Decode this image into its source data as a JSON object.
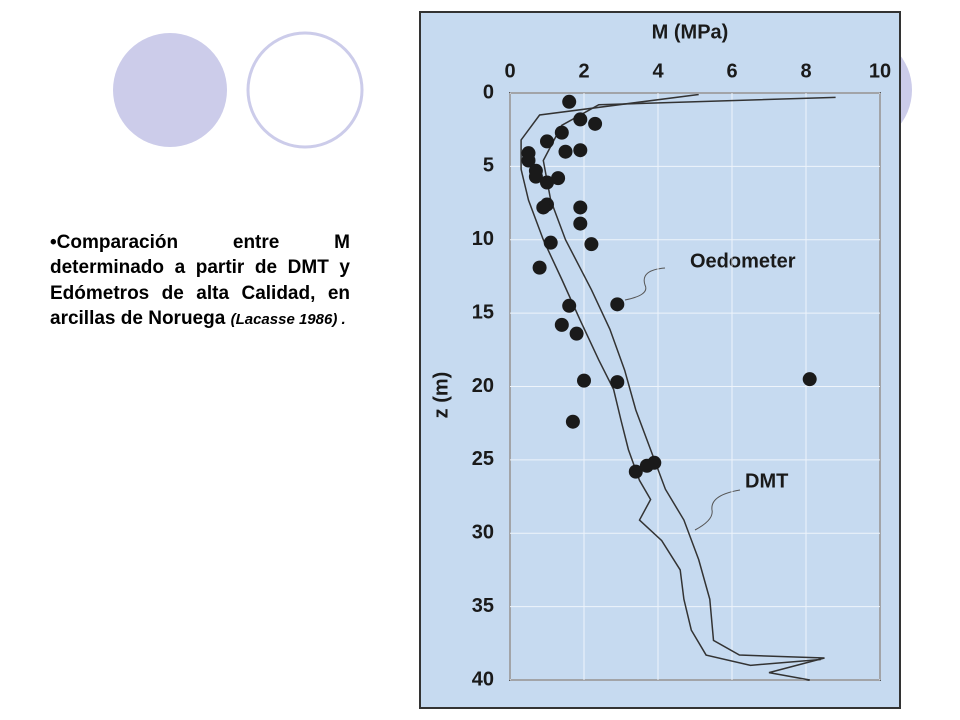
{
  "slide": {
    "text": "•Comparación entre M determinado a partir de DMT y Edómetros de alta Calidad, en arcillas de Noruega",
    "citation": "(Lacasse 1986) ."
  },
  "chart_data": {
    "type": "scatter",
    "title": "M (MPa)",
    "y_label": "z (m)",
    "xlim": [
      0,
      10
    ],
    "xticks": [
      0,
      2,
      4,
      6,
      8,
      10
    ],
    "ylim": [
      0,
      40
    ],
    "yticks": [
      0,
      5,
      10,
      15,
      20,
      25,
      30,
      35,
      40
    ],
    "y_inverted": true,
    "grid": true,
    "color": "#1a1a1a",
    "points": {
      "x": [
        1.6,
        1.9,
        2.3,
        1.4,
        1.0,
        1.9,
        1.5,
        0.5,
        0.5,
        0.7,
        0.7,
        1.3,
        1.0,
        1.0,
        0.9,
        1.9,
        1.9,
        1.1,
        2.2,
        0.8,
        1.6,
        2.9,
        1.4,
        1.8,
        2.0,
        2.9,
        8.1,
        1.7,
        3.9,
        3.7,
        3.4
      ],
      "values": [
        0.6,
        1.8,
        2.1,
        2.7,
        3.3,
        3.9,
        4.0,
        4.1,
        4.6,
        5.3,
        5.7,
        5.8,
        6.1,
        7.6,
        7.8,
        7.8,
        8.9,
        10.2,
        10.3,
        11.9,
        14.5,
        14.4,
        15.8,
        16.4,
        19.6,
        19.7,
        19.5,
        22.4,
        25.2,
        25.4,
        25.8
      ]
    },
    "series": [
      {
        "color": "#333333",
        "x": [
          5.1,
          0.8,
          0.3,
          0.3,
          0.5,
          0.9,
          1.4,
          1.9,
          2.4,
          2.8,
          3.0,
          3.2,
          3.5,
          3.8,
          3.5,
          4.1,
          4.6,
          4.7,
          4.9,
          5.3,
          6.5,
          8.4
        ],
        "values": [
          0.1,
          1.5,
          3.2,
          5.2,
          7.3,
          10,
          12.7,
          15.5,
          18.2,
          20.2,
          22.3,
          24.3,
          26.4,
          27.7,
          29.1,
          30.5,
          32.5,
          34.5,
          36.6,
          38.3,
          39,
          38.6
        ]
      },
      {
        "color": "#333333",
        "x": [
          8.8,
          2.4,
          1.4,
          0.9,
          1.1,
          1.5,
          2.2,
          2.7,
          3.1,
          3.4,
          3.8,
          4.2,
          4.7,
          5.1,
          5.4,
          5.5,
          6.2,
          8.5,
          7.0,
          8.1
        ],
        "values": [
          0.3,
          0.8,
          2.2,
          4.6,
          7.3,
          10,
          13.4,
          16.1,
          18.9,
          21.6,
          24.3,
          27,
          29.1,
          31.8,
          34.5,
          37.3,
          38.3,
          38.5,
          39.5,
          40
        ]
      }
    ],
    "annotations": [
      {
        "text": "Oedometer"
      },
      {
        "text": "DMT"
      }
    ]
  }
}
